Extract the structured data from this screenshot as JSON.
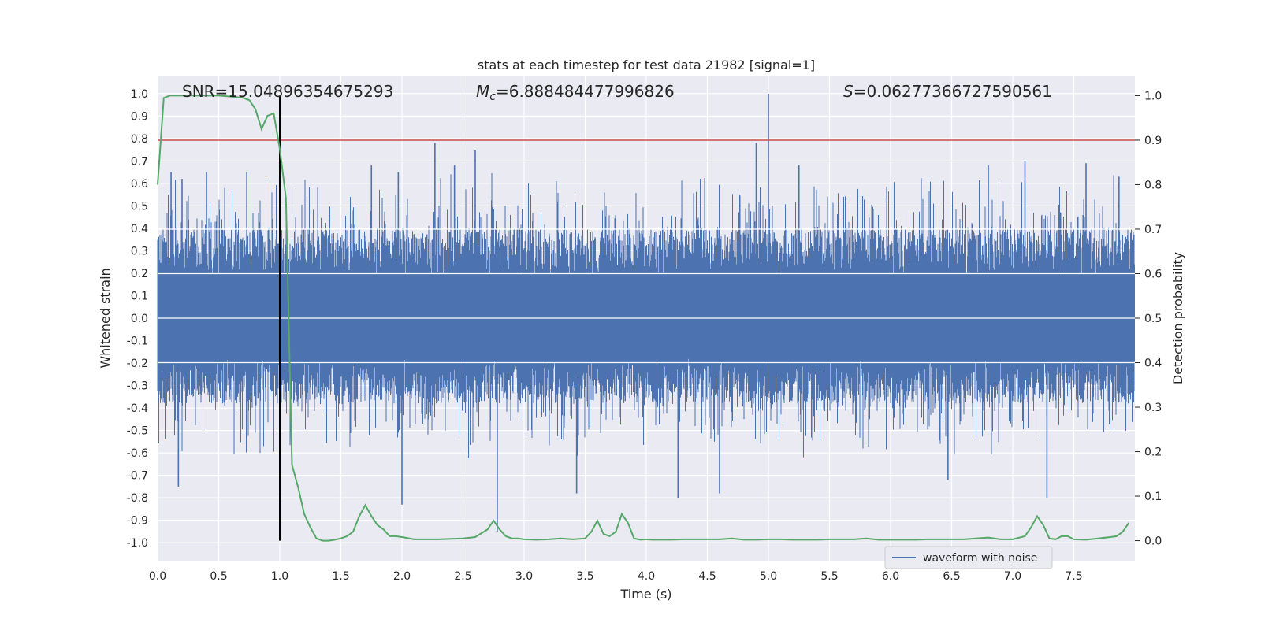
{
  "chart_data": {
    "type": "line",
    "title": "stats at each timestep for test data 21982 [signal=1]",
    "xlabel": "Time (s)",
    "ylabel_left": "Whitened strain",
    "ylabel_right": "Detection probability",
    "xlim": [
      0,
      8
    ],
    "ylim_left": [
      -1.08,
      1.08
    ],
    "ylim_right": [
      -0.045,
      1.045
    ],
    "x_ticks": [
      "0.0",
      "0.5",
      "1.0",
      "1.5",
      "2.0",
      "2.5",
      "3.0",
      "3.5",
      "4.0",
      "4.5",
      "5.0",
      "5.5",
      "6.0",
      "6.5",
      "7.0",
      "7.5"
    ],
    "x_tick_values": [
      0,
      0.5,
      1,
      1.5,
      2,
      2.5,
      3,
      3.5,
      4,
      4.5,
      5,
      5.5,
      6,
      6.5,
      7,
      7.5
    ],
    "y_left_ticks": [
      "1.0",
      "0.9",
      "0.8",
      "0.7",
      "0.6",
      "0.5",
      "0.4",
      "0.3",
      "0.2",
      "0.1",
      "0.0",
      "-0.1",
      "-0.2",
      "-0.3",
      "-0.4",
      "-0.5",
      "-0.6",
      "-0.7",
      "-0.8",
      "-0.9",
      "-1.0"
    ],
    "y_left_tick_values": [
      1,
      0.9,
      0.8,
      0.7,
      0.6,
      0.5,
      0.4,
      0.3,
      0.2,
      0.1,
      0,
      -0.1,
      -0.2,
      -0.3,
      -0.4,
      -0.5,
      -0.6,
      -0.7,
      -0.8,
      -0.9,
      -1
    ],
    "y_right_ticks": [
      "1.0",
      "0.9",
      "0.8",
      "0.7",
      "0.6",
      "0.5",
      "0.4",
      "0.3",
      "0.2",
      "0.1",
      "0.0"
    ],
    "y_right_tick_values": [
      1,
      0.9,
      0.8,
      0.7,
      0.6,
      0.5,
      0.4,
      0.3,
      0.2,
      0.1,
      0
    ],
    "annotations": {
      "snr": "SNR=15.04896354675293",
      "mc_prefix": "M",
      "mc_sub": "c",
      "mc_value": "=6.888484477996826",
      "s_prefix": "S",
      "s_value": "=0.06277366727590561"
    },
    "threshold": {
      "value": 0.9,
      "axis": "right",
      "color": "#c44e52"
    },
    "event_marker": {
      "x": 1.0,
      "color": "#000000"
    },
    "legend": {
      "label": "waveform with noise",
      "placement": "lower-right"
    },
    "colors": {
      "waveform": "#4c72b0",
      "probability": "#55a868",
      "background": "#eaeaf2",
      "grid": "#ffffff"
    },
    "grid": true,
    "series": [
      {
        "name": "waveform with noise",
        "axis": "left",
        "description_values": "noise band roughly ±0.2 to ±0.4 with spikes",
        "spikes": [
          {
            "x": 0.17,
            "y": -0.75
          },
          {
            "x": 0.11,
            "y": 0.65
          },
          {
            "x": 0.2,
            "y": 0.62
          },
          {
            "x": 0.4,
            "y": 0.65
          },
          {
            "x": 0.73,
            "y": 0.65
          },
          {
            "x": 1.97,
            "y": 0.65
          },
          {
            "x": 2.0,
            "y": -0.83
          },
          {
            "x": 2.27,
            "y": 0.78
          },
          {
            "x": 2.43,
            "y": 0.68
          },
          {
            "x": 2.6,
            "y": 0.75
          },
          {
            "x": 2.78,
            "y": -0.95
          },
          {
            "x": 3.43,
            "y": -0.78
          },
          {
            "x": 4.26,
            "y": -0.8
          },
          {
            "x": 4.6,
            "y": -0.78
          },
          {
            "x": 4.9,
            "y": 0.78
          },
          {
            "x": 5.0,
            "y": 1.0
          },
          {
            "x": 5.25,
            "y": 0.68
          },
          {
            "x": 6.47,
            "y": -0.72
          },
          {
            "x": 6.8,
            "y": 0.68
          },
          {
            "x": 7.1,
            "y": 0.7
          },
          {
            "x": 7.28,
            "y": -0.8
          },
          {
            "x": 7.6,
            "y": 0.69
          },
          {
            "x": 7.87,
            "y": 0.63
          },
          {
            "x": 1.75,
            "y": 0.68
          }
        ]
      },
      {
        "name": "detection probability",
        "axis": "right",
        "x": [
          0,
          0.05,
          0.1,
          0.15,
          0.2,
          0.3,
          0.4,
          0.5,
          0.6,
          0.7,
          0.75,
          0.8,
          0.85,
          0.9,
          0.95,
          1.0,
          1.05,
          1.1,
          1.15,
          1.2,
          1.25,
          1.3,
          1.35,
          1.4,
          1.45,
          1.5,
          1.55,
          1.6,
          1.65,
          1.7,
          1.75,
          1.8,
          1.85,
          1.9,
          1.95,
          2.0,
          2.1,
          2.2,
          2.3,
          2.4,
          2.5,
          2.6,
          2.7,
          2.75,
          2.8,
          2.85,
          2.9,
          2.95,
          3.0,
          3.1,
          3.2,
          3.3,
          3.4,
          3.5,
          3.55,
          3.6,
          3.65,
          3.7,
          3.75,
          3.8,
          3.85,
          3.9,
          3.95,
          4.0,
          4.05,
          4.1,
          4.2,
          4.3,
          4.4,
          4.5,
          4.6,
          4.7,
          4.8,
          4.9,
          5.0,
          5.1,
          5.2,
          5.3,
          5.4,
          5.5,
          5.6,
          5.7,
          5.8,
          5.9,
          6.0,
          6.1,
          6.2,
          6.3,
          6.4,
          6.5,
          6.6,
          6.7,
          6.8,
          6.9,
          7.0,
          7.1,
          7.15,
          7.2,
          7.25,
          7.3,
          7.35,
          7.4,
          7.45,
          7.5,
          7.6,
          7.7,
          7.8,
          7.85,
          7.9,
          7.95
        ],
        "values": [
          0.8,
          0.995,
          1.0,
          1.0,
          1.0,
          1.0,
          1.0,
          1.0,
          0.998,
          0.995,
          0.99,
          0.97,
          0.925,
          0.955,
          0.96,
          0.88,
          0.77,
          0.17,
          0.12,
          0.06,
          0.03,
          0.005,
          0.0,
          0.0,
          0.002,
          0.005,
          0.01,
          0.02,
          0.055,
          0.08,
          0.055,
          0.035,
          0.025,
          0.01,
          0.01,
          0.008,
          0.003,
          0.003,
          0.003,
          0.004,
          0.005,
          0.008,
          0.025,
          0.045,
          0.025,
          0.01,
          0.005,
          0.005,
          0.003,
          0.002,
          0.003,
          0.005,
          0.003,
          0.005,
          0.02,
          0.045,
          0.015,
          0.01,
          0.02,
          0.06,
          0.04,
          0.005,
          0.002,
          0.003,
          0.002,
          0.002,
          0.002,
          0.003,
          0.003,
          0.003,
          0.003,
          0.005,
          0.002,
          0.002,
          0.003,
          0.003,
          0.002,
          0.002,
          0.002,
          0.003,
          0.003,
          0.003,
          0.005,
          0.002,
          0.002,
          0.002,
          0.002,
          0.003,
          0.003,
          0.003,
          0.003,
          0.005,
          0.007,
          0.003,
          0.003,
          0.01,
          0.03,
          0.055,
          0.035,
          0.005,
          0.003,
          0.01,
          0.01,
          0.003,
          0.002,
          0.005,
          0.008,
          0.01,
          0.02,
          0.04
        ]
      }
    ]
  }
}
